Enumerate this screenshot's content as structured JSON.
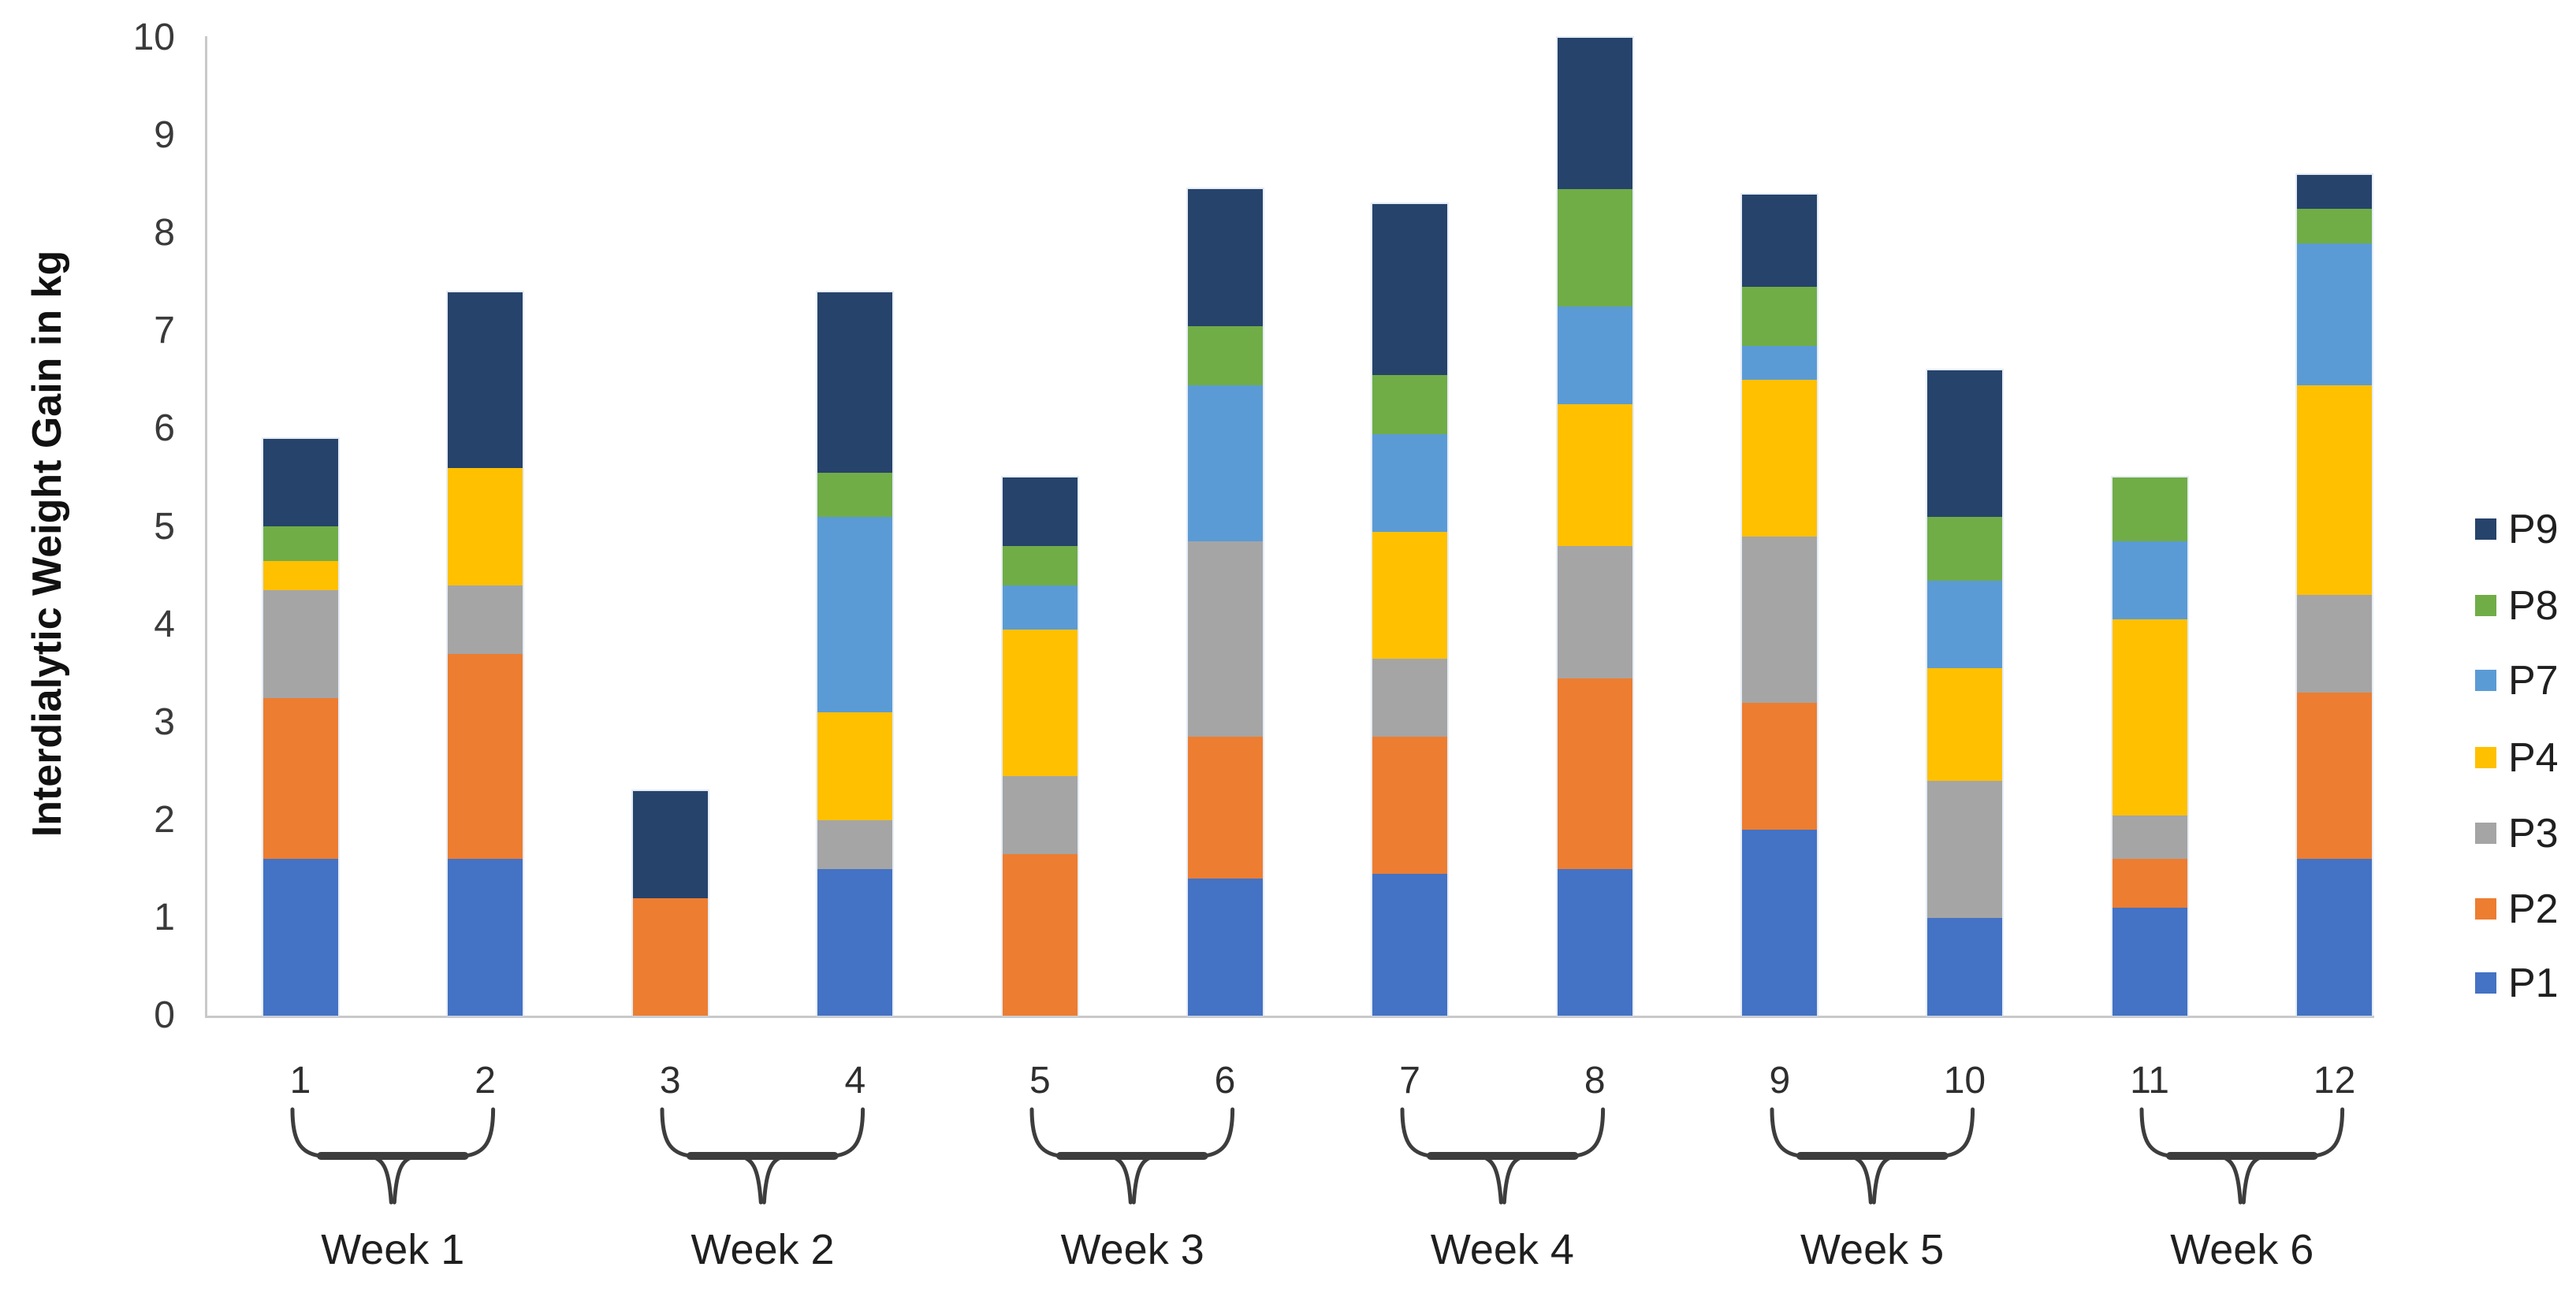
{
  "figure": {
    "background": "#ffffff"
  },
  "y_axis": {
    "title": "Interdialytic Weight Gain in kg",
    "ticks": [
      "0",
      "1",
      "2",
      "3",
      "4",
      "5",
      "6",
      "7",
      "8",
      "9",
      "10"
    ],
    "min": 0,
    "max": 10
  },
  "x_axis": {
    "bar_labels": [
      "1",
      "2",
      "3",
      "4",
      "5",
      "6",
      "7",
      "8",
      "9",
      "10",
      "11",
      "12"
    ],
    "group_labels": [
      "Week 1",
      "Week 2",
      "Week 3",
      "Week 4",
      "Week 5",
      "Week 6"
    ]
  },
  "legend": {
    "entries": [
      {
        "label": "P9",
        "color": "#26436B"
      },
      {
        "label": "P8",
        "color": "#70AD47"
      },
      {
        "label": "P7",
        "color": "#5B9BD5"
      },
      {
        "label": "P4",
        "color": "#FFC000"
      },
      {
        "label": "P3",
        "color": "#A5A5A5"
      },
      {
        "label": "P2",
        "color": "#ED7D31"
      },
      {
        "label": "P1",
        "color": "#4472C4"
      }
    ]
  },
  "chart_data": {
    "type": "bar",
    "stacked": true,
    "title": "",
    "xlabel": "",
    "ylabel": "Interdialytic Weight Gain in kg",
    "ylim": [
      0,
      10
    ],
    "grid": false,
    "legend_position": "right",
    "categories": [
      "1",
      "2",
      "3",
      "4",
      "5",
      "6",
      "7",
      "8",
      "9",
      "10",
      "11",
      "12"
    ],
    "groups": [
      {
        "label": "Week 1",
        "bars": [
          "1",
          "2"
        ]
      },
      {
        "label": "Week 2",
        "bars": [
          "3",
          "4"
        ]
      },
      {
        "label": "Week 3",
        "bars": [
          "5",
          "6"
        ]
      },
      {
        "label": "Week 4",
        "bars": [
          "7",
          "8"
        ]
      },
      {
        "label": "Week 5",
        "bars": [
          "9",
          "10"
        ]
      },
      {
        "label": "Week 6",
        "bars": [
          "11",
          "12"
        ]
      }
    ],
    "series": [
      {
        "name": "P1",
        "color": "#4472C4",
        "values": [
          1.6,
          1.6,
          0,
          1.5,
          0,
          1.4,
          1.45,
          1.5,
          1.9,
          1.0,
          1.1,
          1.6
        ]
      },
      {
        "name": "P2",
        "color": "#ED7D31",
        "values": [
          1.65,
          2.1,
          1.2,
          0,
          1.65,
          1.45,
          1.4,
          1.95,
          1.3,
          0,
          0.5,
          1.7
        ]
      },
      {
        "name": "P3",
        "color": "#A5A5A5",
        "values": [
          1.1,
          0.7,
          0,
          0.5,
          0.8,
          2.0,
          0.8,
          1.35,
          1.7,
          1.4,
          0.45,
          1.0
        ]
      },
      {
        "name": "P4",
        "color": "#FFC000",
        "values": [
          0.3,
          1.2,
          0,
          1.1,
          1.5,
          0,
          1.3,
          1.45,
          1.6,
          1.15,
          2.0,
          2.15
        ]
      },
      {
        "name": "P7",
        "color": "#5B9BD5",
        "values": [
          0,
          0,
          0,
          2.0,
          0.45,
          1.6,
          1.0,
          1.0,
          0.35,
          0.9,
          0.8,
          1.45
        ]
      },
      {
        "name": "P8",
        "color": "#70AD47",
        "values": [
          0.35,
          0,
          0,
          0.45,
          0.4,
          0.6,
          0.6,
          1.2,
          0.6,
          0.65,
          0.65,
          0.35
        ]
      },
      {
        "name": "P9",
        "color": "#26436B",
        "values": [
          0.9,
          1.8,
          1.1,
          1.85,
          0.7,
          1.4,
          1.75,
          1.55,
          0.95,
          1.5,
          0,
          0.35
        ]
      }
    ],
    "totals": [
      5.9,
      7.4,
      2.3,
      7.4,
      5.5,
      8.45,
      8.3,
      10.0,
      8.4,
      6.6,
      5.5,
      8.6
    ]
  }
}
